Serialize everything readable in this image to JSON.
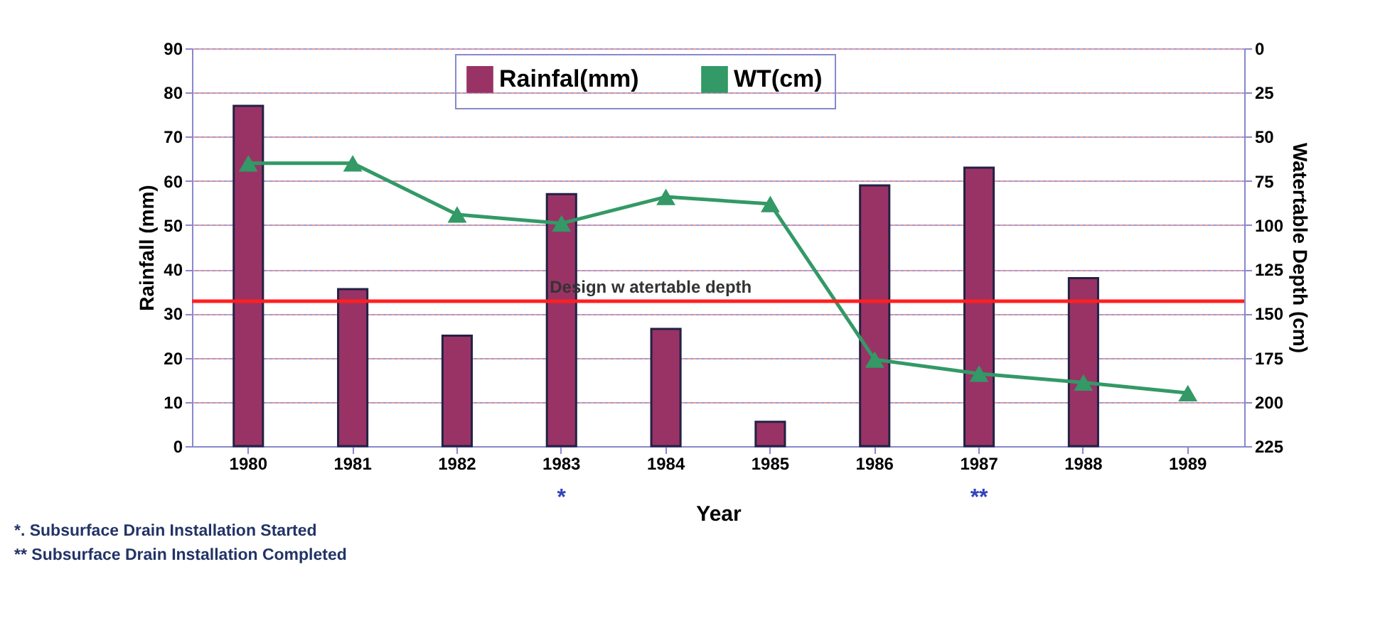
{
  "chart_data": {
    "type": "bar",
    "xlabel": "Year",
    "ylabel": "Rainfall (mm)",
    "y2label": "Watertable Depth (cm)",
    "categories": [
      "1980",
      "1981",
      "1982",
      "1983",
      "1984",
      "1985",
      "1986",
      "1987",
      "1988",
      "1989"
    ],
    "series": [
      {
        "name": "Rainfal(mm)",
        "color": "#993366",
        "values": [
          77,
          35.5,
          25,
          57,
          26.5,
          5.5,
          59,
          63,
          38,
          null
        ]
      },
      {
        "name": "WT(cm)",
        "type": "line",
        "axis": "y2",
        "color": "#339966",
        "marker": "triangle",
        "line_style": "solid",
        "values": [
          65,
          65,
          94,
          99,
          84,
          88,
          176,
          184,
          189,
          195
        ]
      }
    ],
    "ylim": [
      0,
      90
    ],
    "yticks": [
      0,
      10,
      20,
      30,
      40,
      50,
      60,
      70,
      80,
      90
    ],
    "y2lim": [
      225,
      0
    ],
    "y2ticks": [
      0,
      25,
      50,
      75,
      100,
      125,
      150,
      175,
      200,
      225
    ],
    "ref_lines": [
      {
        "axis": "y2",
        "value": 143,
        "label": "Design w atertable depth",
        "color": "#ff2020"
      }
    ],
    "grid": "y",
    "legend": "top",
    "annotations": [
      "*",
      "**",
      "*. Subsurface Drain Installation Started",
      "** Subsurface Drain Installation Completed"
    ]
  }
}
